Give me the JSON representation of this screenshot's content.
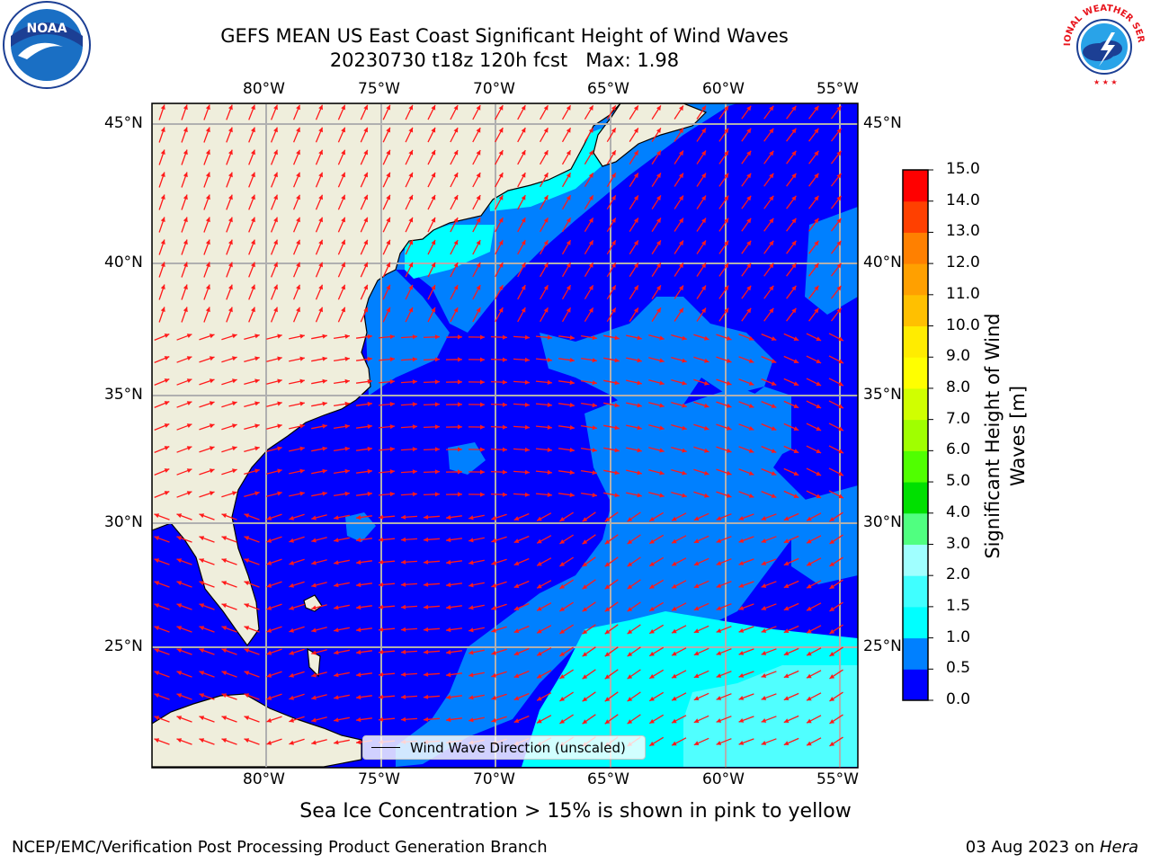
{
  "title": {
    "line1": "GEFS MEAN US East Coast Significant Height of Wind Waves",
    "line2": "20230730 t18z 120h fcst   Max: 1.98"
  },
  "map": {
    "lon_ticks": [
      "80°W",
      "75°W",
      "70°W",
      "65°W",
      "60°W",
      "55°W"
    ],
    "lat_ticks": [
      "45°N",
      "40°N",
      "35°N",
      "30°N",
      "25°N"
    ],
    "extent": {
      "lon_min": -85,
      "lon_max": -54.2,
      "lat_min": 20.5,
      "lat_max": 45.8
    },
    "colors": {
      "land": "#efeedc",
      "coast": "#000000",
      "grid": "#b0b0b0",
      "arrow": "#ff1a1a"
    }
  },
  "colorbar": {
    "labels": [
      "0.0",
      "0.5",
      "1.0",
      "1.5",
      "2.0",
      "3.0",
      "4.0",
      "5.0",
      "6.0",
      "7.0",
      "8.0",
      "9.0",
      "10.0",
      "11.0",
      "12.0",
      "13.0",
      "14.0",
      "15.0"
    ],
    "colors": [
      "#0000ff",
      "#0080ff",
      "#00ffff",
      "#40ffff",
      "#a0ffff",
      "#50ff80",
      "#00e000",
      "#50ff00",
      "#a0ff00",
      "#d0ff00",
      "#ffff00",
      "#ffec00",
      "#ffc000",
      "#ffa000",
      "#ff8000",
      "#ff4000",
      "#ff0000"
    ],
    "title_line1": "Significant Height of Wind",
    "title_line2": "Waves [m]"
  },
  "legend": {
    "label": "Wind Wave Direction (unscaled)"
  },
  "caption": "Sea Ice Concentration > 15% is shown in pink to yellow",
  "footer": {
    "credit": "NCEP/EMC/Verification Post Processing Product Generation Branch",
    "date_prefix": "03 Aug 2023 on ",
    "host": "Hera"
  },
  "logos": {
    "left": "NOAA",
    "right": "NATIONAL WEATHER SERVICE"
  }
}
